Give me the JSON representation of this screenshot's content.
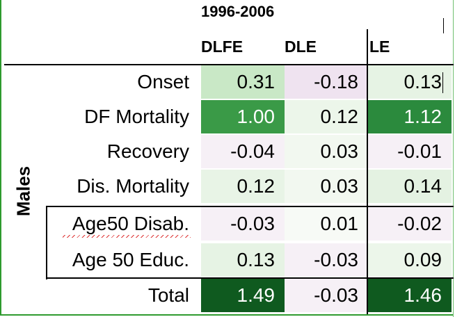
{
  "table": {
    "period": "1996-2006",
    "columns": [
      "DLFE",
      "DLE",
      "LE"
    ],
    "group_label": "Males",
    "rows": [
      {
        "label": "Onset",
        "values": [
          "0.31",
          "-0.18",
          "0.13"
        ],
        "colors": [
          "#c9e8c6",
          "#efe3f0",
          "#e6f3e4"
        ]
      },
      {
        "label": "DF Mortality",
        "values": [
          "1.00",
          "0.12",
          "1.12"
        ],
        "colors": [
          "#3a9a47",
          "#ecf6ea",
          "#2b8a3d"
        ]
      },
      {
        "label": "Recovery",
        "values": [
          "-0.04",
          "0.03",
          "-0.01"
        ],
        "colors": [
          "#f6f0f6",
          "#f2f8f0",
          "#f6f0f6"
        ]
      },
      {
        "label": "Dis. Mortality",
        "values": [
          "0.12",
          "0.03",
          "0.14"
        ],
        "colors": [
          "#e8f4e6",
          "#f2f8f0",
          "#e4f2e2"
        ]
      },
      {
        "label": "Age50 Disab.",
        "values": [
          "-0.03",
          "0.01",
          "-0.02"
        ],
        "colors": [
          "#f6f0f6",
          "#f7faf6",
          "#f6f0f6"
        ]
      },
      {
        "label": "Age 50 Educ.",
        "values": [
          "0.13",
          "-0.03",
          "0.09"
        ],
        "colors": [
          "#e6f3e4",
          "#f6f0f6",
          "#ecf6ea"
        ]
      },
      {
        "label": "Total",
        "values": [
          "1.49",
          "-0.03",
          "1.46"
        ],
        "colors": [
          "#0f5a1f",
          "#f6f0f6",
          "#0f5a1f"
        ]
      }
    ]
  }
}
